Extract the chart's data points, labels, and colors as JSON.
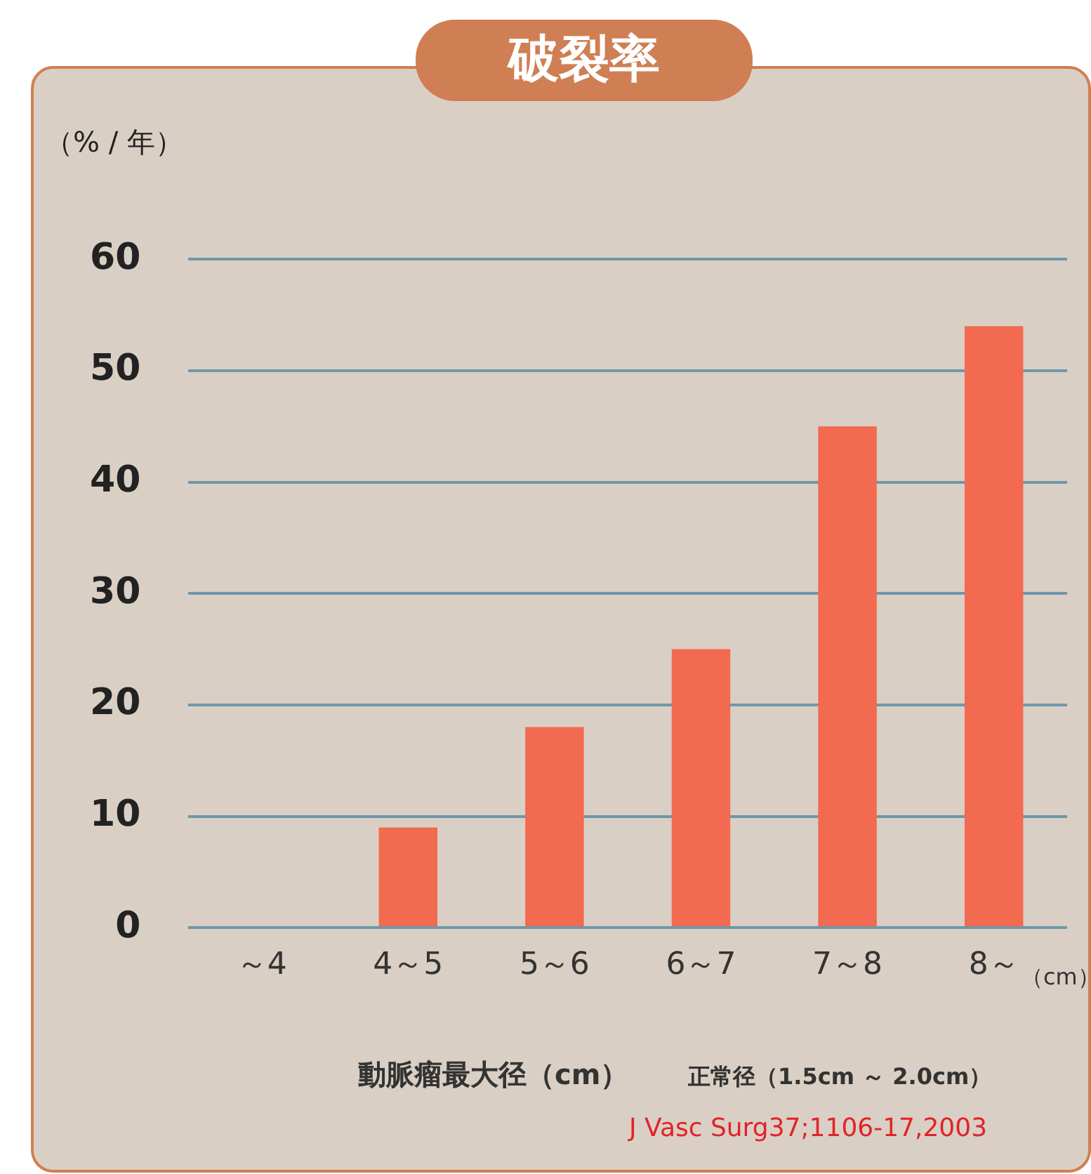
{
  "chart_data": {
    "type": "bar",
    "title": "破裂率",
    "ylabel": "（% / 年）",
    "xlabel": "動脈瘤最大径（cm）",
    "annotations": [
      "（cm）",
      "正常径（1.5cm ～ 2.0cm）",
      "J Vasc Surg37;1106-17,2003"
    ],
    "categories": [
      "～4",
      "4～5",
      "5～6",
      "6～7",
      "7～8",
      "8～"
    ],
    "values": [
      0,
      9,
      18,
      25,
      45,
      54
    ],
    "color": "#f26a50",
    "ylim": [
      0,
      60
    ],
    "yticks": [
      0,
      10,
      20,
      30,
      40,
      50,
      60
    ],
    "grid": "y",
    "legend": false
  }
}
